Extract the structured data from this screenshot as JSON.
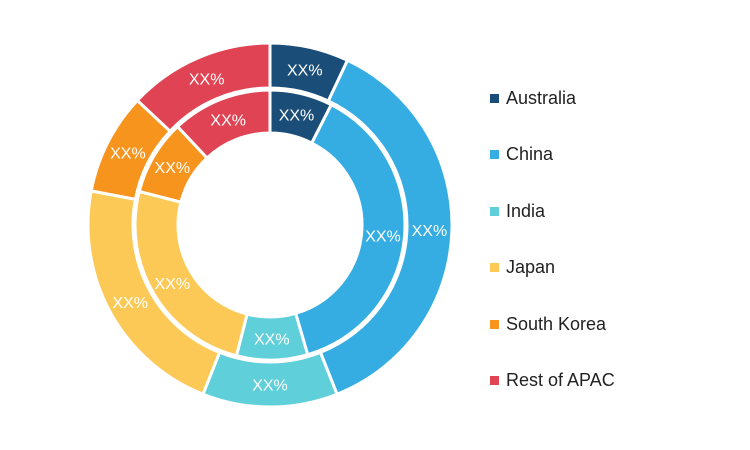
{
  "chart_data": {
    "type": "pie",
    "subtype": "double-donut",
    "legend_position": "right",
    "categories": [
      "Australia",
      "China",
      "India",
      "Japan",
      "South Korea",
      "Rest of APAC"
    ],
    "colors": [
      "#1a4e79",
      "#36ade2",
      "#5fcfd9",
      "#fcc957",
      "#f7941d",
      "#e04454"
    ],
    "series": [
      {
        "ring": "outer",
        "values": [
          7,
          37,
          12,
          22,
          9,
          13
        ],
        "labels": [
          "XX%",
          "XX%",
          "XX%",
          "XX%",
          "XX%",
          "XX%"
        ]
      },
      {
        "ring": "inner",
        "values": [
          7.5,
          38,
          8.5,
          25,
          9,
          12
        ],
        "labels": [
          "XX%",
          "XX%",
          "XX%",
          "XX%",
          "XX%",
          "XX%"
        ]
      }
    ]
  }
}
